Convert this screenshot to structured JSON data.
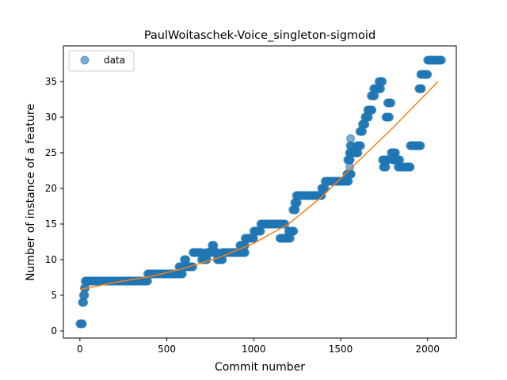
{
  "chart_data": {
    "type": "scatter",
    "title": "PaulWoitaschek-Voice_singleton-sigmoid",
    "xlabel": "Commit number",
    "ylabel": "Number of instance of a feature",
    "xlim": [
      -95,
      2165
    ],
    "ylim": [
      -1,
      40
    ],
    "xticks": [
      0,
      500,
      1000,
      1500,
      2000
    ],
    "yticks": [
      0,
      5,
      10,
      15,
      20,
      25,
      30,
      35
    ],
    "grid": false,
    "legend": {
      "placement": "top-left",
      "entries": [
        "data"
      ]
    },
    "colors": {
      "data": "#1f77b4",
      "fit": "#ff7f0e"
    },
    "series": [
      {
        "name": "data",
        "kind": "scatter",
        "segments": [
          [
            0,
            15,
            1
          ],
          [
            14,
            22,
            4
          ],
          [
            20,
            28,
            5
          ],
          [
            25,
            32,
            6
          ],
          [
            30,
            390,
            7
          ],
          [
            390,
            590,
            8
          ],
          [
            570,
            600,
            9
          ],
          [
            600,
            610,
            10
          ],
          [
            610,
            650,
            9
          ],
          [
            650,
            700,
            11
          ],
          [
            700,
            730,
            10
          ],
          [
            730,
            790,
            11
          ],
          [
            760,
            770,
            12
          ],
          [
            790,
            820,
            10
          ],
          [
            820,
            950,
            11
          ],
          [
            920,
            950,
            12
          ],
          [
            950,
            1000,
            13
          ],
          [
            1000,
            1040,
            14
          ],
          [
            1040,
            1100,
            15
          ],
          [
            1080,
            1180,
            15
          ],
          [
            1150,
            1210,
            13
          ],
          [
            1200,
            1230,
            14
          ],
          [
            1225,
            1240,
            17
          ],
          [
            1235,
            1250,
            18
          ],
          [
            1245,
            1390,
            19
          ],
          [
            1390,
            1410,
            20
          ],
          [
            1410,
            1545,
            21
          ],
          [
            1535,
            1560,
            22
          ],
          [
            1540,
            1555,
            24
          ],
          [
            1550,
            1570,
            25
          ],
          [
            1555,
            1560,
            26
          ],
          [
            1560,
            1600,
            25
          ],
          [
            1595,
            1615,
            26
          ],
          [
            1610,
            1625,
            28
          ],
          [
            1625,
            1640,
            29
          ],
          [
            1640,
            1660,
            30
          ],
          [
            1655,
            1680,
            31
          ],
          [
            1675,
            1695,
            33
          ],
          [
            1690,
            1730,
            34
          ],
          [
            1720,
            1740,
            35
          ],
          [
            1745,
            1760,
            23
          ],
          [
            1740,
            1770,
            24
          ],
          [
            1760,
            1780,
            30
          ],
          [
            1770,
            1790,
            32
          ],
          [
            1790,
            1815,
            25
          ],
          [
            1800,
            1840,
            24
          ],
          [
            1830,
            1900,
            23
          ],
          [
            1900,
            1960,
            26
          ],
          [
            1950,
            1965,
            34
          ],
          [
            1960,
            2000,
            36
          ],
          [
            2000,
            2080,
            38
          ]
        ],
        "single_points": [
          [
            1557,
            27
          ],
          [
            1553,
            23
          ]
        ]
      },
      {
        "name": "",
        "kind": "line",
        "x": [
          0,
          200,
          400,
          600,
          800,
          1000,
          1200,
          1400,
          1600,
          1800,
          2060
        ],
        "y": [
          5.8,
          6.8,
          7.6,
          8.8,
          10.3,
          12.3,
          15.0,
          19.0,
          23.8,
          28.5,
          35
        ]
      }
    ]
  }
}
